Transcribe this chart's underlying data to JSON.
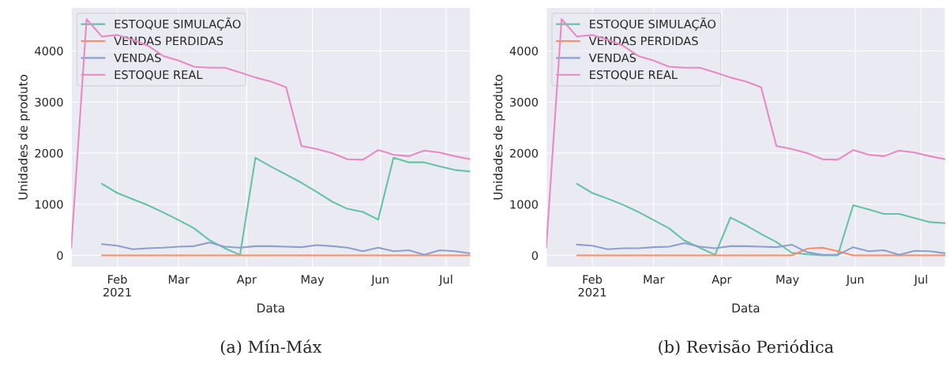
{
  "chart_data": [
    {
      "type": "line",
      "xlabel": "Data",
      "ylabel": "Unidades de produto",
      "annotations": [
        "(a) Mín-Máx"
      ],
      "x": [
        "2021-01-11",
        "2021-01-18",
        "2021-01-25",
        "2021-02-01",
        "2021-02-08",
        "2021-02-15",
        "2021-02-22",
        "2021-03-01",
        "2021-03-08",
        "2021-03-15",
        "2021-03-22",
        "2021-03-29",
        "2021-04-05",
        "2021-04-12",
        "2021-04-19",
        "2021-04-26",
        "2021-05-03",
        "2021-05-10",
        "2021-05-17",
        "2021-05-24",
        "2021-05-31",
        "2021-06-07",
        "2021-06-14",
        "2021-06-21",
        "2021-06-28",
        "2021-07-05",
        "2021-07-12"
      ],
      "series": [
        {
          "name": "ESTOQUE SIMULAÇÃO",
          "color": "#66c2a5",
          "values": [
            null,
            null,
            1400,
            1220,
            1100,
            980,
            840,
            690,
            530,
            300,
            140,
            10,
            1910,
            1740,
            1580,
            1420,
            1240,
            1050,
            910,
            850,
            700,
            1910,
            1820,
            1820,
            1740,
            1670,
            1640
          ]
        },
        {
          "name": "VENDAS PERDIDAS",
          "color": "#fc8d62",
          "values": [
            null,
            null,
            0,
            0,
            0,
            0,
            0,
            0,
            0,
            0,
            0,
            0,
            0,
            0,
            0,
            0,
            0,
            0,
            0,
            0,
            0,
            0,
            0,
            0,
            0,
            0,
            0
          ]
        },
        {
          "name": "VENDAS",
          "color": "#8da0cb",
          "values": [
            null,
            null,
            220,
            190,
            120,
            140,
            150,
            170,
            180,
            250,
            170,
            150,
            180,
            180,
            170,
            160,
            200,
            180,
            150,
            80,
            150,
            80,
            100,
            10,
            100,
            80,
            40
          ]
        },
        {
          "name": "ESTOQUE REAL",
          "color": "#e78ac3",
          "values": [
            150,
            4620,
            4280,
            4310,
            4220,
            4100,
            3900,
            3810,
            3690,
            3670,
            3670,
            3580,
            3480,
            3400,
            3290,
            2140,
            2080,
            2000,
            1880,
            1870,
            2060,
            1970,
            1940,
            2050,
            2010,
            1940,
            1880
          ]
        }
      ],
      "xlim": [
        "2021-01-11",
        "2021-07-12"
      ],
      "xticks": [
        {
          "value": "2021-02-01",
          "label": "Feb\n2021"
        },
        {
          "value": "2021-03-01",
          "label": "Mar"
        },
        {
          "value": "2021-04-01",
          "label": "Apr"
        },
        {
          "value": "2021-05-01",
          "label": "May"
        },
        {
          "value": "2021-06-01",
          "label": "Jun"
        },
        {
          "value": "2021-07-01",
          "label": "Jul"
        }
      ],
      "ylim": [
        -230,
        4850
      ],
      "yticks": [
        0,
        1000,
        2000,
        3000,
        4000
      ],
      "grid": true,
      "legend": "top left"
    },
    {
      "type": "line",
      "xlabel": "Data",
      "ylabel": "Unidades de produto",
      "annotations": [
        "(b) Revisão Periódica"
      ],
      "x": [
        "2021-01-11",
        "2021-01-18",
        "2021-01-25",
        "2021-02-01",
        "2021-02-08",
        "2021-02-15",
        "2021-02-22",
        "2021-03-01",
        "2021-03-08",
        "2021-03-15",
        "2021-03-22",
        "2021-03-29",
        "2021-04-05",
        "2021-04-12",
        "2021-04-19",
        "2021-04-26",
        "2021-05-03",
        "2021-05-10",
        "2021-05-17",
        "2021-05-24",
        "2021-05-31",
        "2021-06-07",
        "2021-06-14",
        "2021-06-21",
        "2021-06-28",
        "2021-07-05",
        "2021-07-12"
      ],
      "series": [
        {
          "name": "ESTOQUE SIMULAÇÃO",
          "color": "#66c2a5",
          "values": [
            null,
            null,
            1400,
            1220,
            1110,
            990,
            850,
            690,
            530,
            290,
            150,
            10,
            740,
            590,
            420,
            260,
            50,
            20,
            0,
            0,
            980,
            900,
            810,
            810,
            730,
            650,
            630
          ]
        },
        {
          "name": "VENDAS PERDIDAS",
          "color": "#fc8d62",
          "values": [
            null,
            null,
            0,
            0,
            0,
            0,
            0,
            0,
            0,
            0,
            0,
            0,
            0,
            0,
            0,
            0,
            0,
            130,
            150,
            80,
            0,
            0,
            0,
            0,
            0,
            0,
            0
          ]
        },
        {
          "name": "VENDAS",
          "color": "#8da0cb",
          "values": [
            null,
            null,
            210,
            190,
            120,
            140,
            140,
            160,
            170,
            240,
            170,
            140,
            180,
            180,
            170,
            160,
            210,
            60,
            10,
            10,
            160,
            80,
            100,
            10,
            90,
            80,
            40
          ]
        },
        {
          "name": "ESTOQUE REAL",
          "color": "#e78ac3",
          "values": [
            150,
            4620,
            4280,
            4310,
            4220,
            4100,
            3900,
            3810,
            3690,
            3670,
            3670,
            3580,
            3480,
            3400,
            3290,
            2140,
            2080,
            2000,
            1880,
            1870,
            2060,
            1970,
            1940,
            2050,
            2010,
            1940,
            1880
          ]
        }
      ],
      "xlim": [
        "2021-01-11",
        "2021-07-12"
      ],
      "xticks": [
        {
          "value": "2021-02-01",
          "label": "Feb\n2021"
        },
        {
          "value": "2021-03-01",
          "label": "Mar"
        },
        {
          "value": "2021-04-01",
          "label": "Apr"
        },
        {
          "value": "2021-05-01",
          "label": "May"
        },
        {
          "value": "2021-06-01",
          "label": "Jun"
        },
        {
          "value": "2021-07-01",
          "label": "Jul"
        }
      ],
      "ylim": [
        -230,
        4850
      ],
      "yticks": [
        0,
        1000,
        2000,
        3000,
        4000
      ],
      "grid": true,
      "legend": "top left"
    }
  ]
}
